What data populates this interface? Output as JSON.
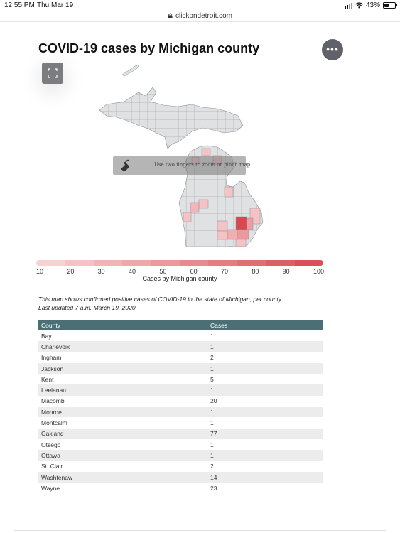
{
  "status": {
    "time": "12:55 PM",
    "date": "Thu Mar 19",
    "battery": "43%",
    "battery_level": 0.43
  },
  "browser": {
    "url": "clickondetroit.com"
  },
  "header": {
    "title": "COVID-19 cases by Michigan county"
  },
  "map": {
    "pinch_message": "Use two fingers to zoom or pinch map",
    "icons": {
      "menu": "more-dots-icon",
      "expand": "expand-icon",
      "hand": "touch-hand-icon"
    }
  },
  "legend": {
    "title": "Cases by Michigan county",
    "ticks": [
      "10",
      "20",
      "30",
      "40",
      "50",
      "60",
      "70",
      "80",
      "90",
      "100"
    ],
    "colors": [
      "#f7d2d3",
      "#f4c3c5",
      "#f1b5b7",
      "#eea7aa",
      "#eb999c",
      "#e88b8e",
      "#e47c80",
      "#e06e72",
      "#dc5f64",
      "#d85156"
    ]
  },
  "description": {
    "line1": "This map shows confirmed positive cases of COVID-19 in the state of Michigan, per county.",
    "line2": "Last updated  7 a.m. March 19, 2020"
  },
  "table": {
    "headers": [
      "County",
      "Cases"
    ],
    "rows": [
      [
        "Bay",
        "1"
      ],
      [
        "Charlevoix",
        "1"
      ],
      [
        "Ingham",
        "2"
      ],
      [
        "Jackson",
        "1"
      ],
      [
        "Kent",
        "5"
      ],
      [
        "Leelanau",
        "1"
      ],
      [
        "Macomb",
        "20"
      ],
      [
        "Monroe",
        "1"
      ],
      [
        "Montcalm",
        "1"
      ],
      [
        "Oakland",
        "77"
      ],
      [
        "Otsego",
        "1"
      ],
      [
        "Ottawa",
        "1"
      ],
      [
        "St. Clair",
        "2"
      ],
      [
        "Washtenaw",
        "14"
      ],
      [
        "Wayne",
        "23"
      ]
    ]
  }
}
